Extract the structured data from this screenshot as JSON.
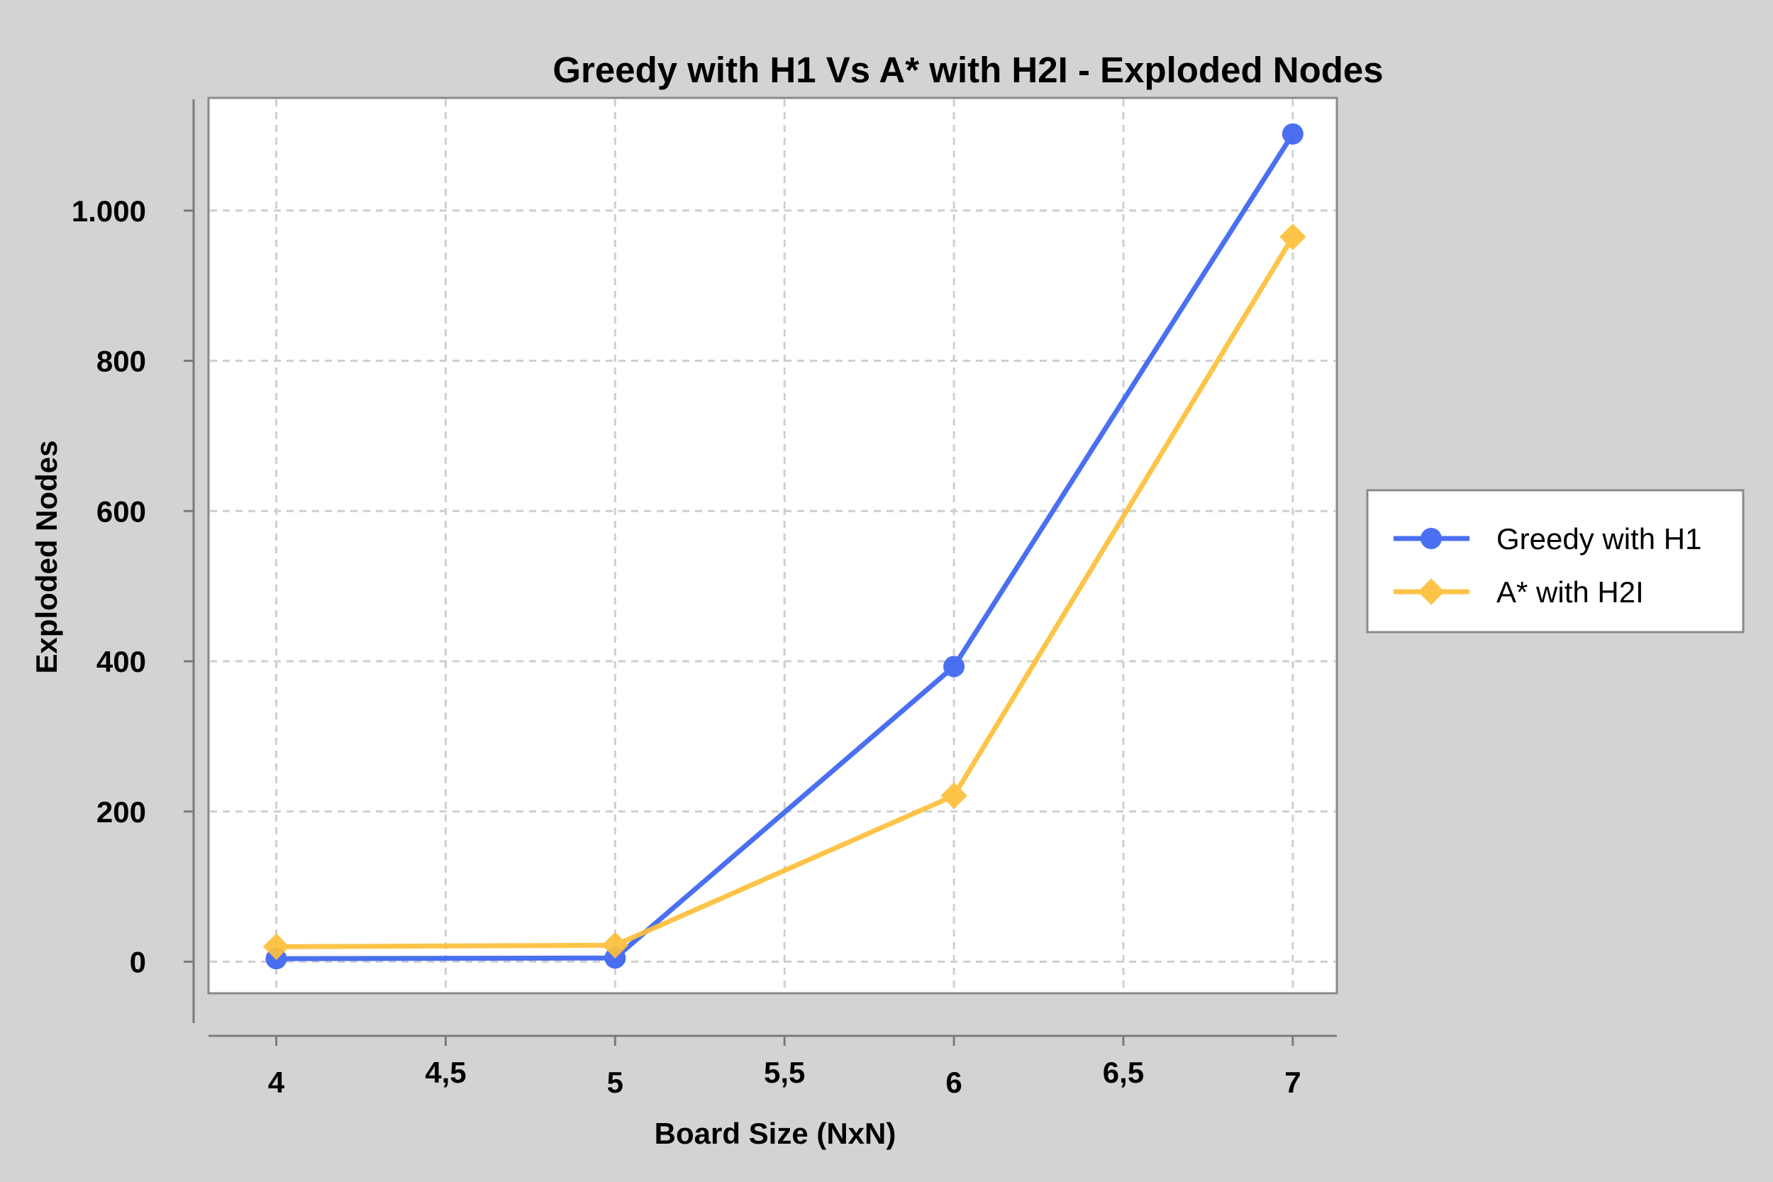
{
  "chart_data": {
    "type": "line",
    "title": "Greedy with H1 Vs A* with H2I - Exploded Nodes",
    "xlabel": "Board Size (NxN)",
    "ylabel": "Exploded Nodes",
    "x": [
      4,
      5,
      6,
      7
    ],
    "xlim": [
      3.8,
      7.13
    ],
    "ylim": [
      -42,
      1150
    ],
    "x_ticks": [
      4,
      4.5,
      5,
      5.5,
      6,
      6.5,
      7
    ],
    "x_tick_labels": [
      "4",
      "4,5",
      "5",
      "5,5",
      "6",
      "6,5",
      "7"
    ],
    "y_ticks": [
      0,
      200,
      400,
      600,
      800,
      1000
    ],
    "y_tick_labels": [
      "0",
      "200",
      "400",
      "600",
      "800",
      "1.000"
    ],
    "grid": true,
    "legend_position": "right",
    "series": [
      {
        "name": "Greedy with H1",
        "values": [
          4,
          5,
          393,
          1102
        ],
        "color": "#3b63f0",
        "marker": "circle"
      },
      {
        "name": "A* with H2I",
        "values": [
          20,
          22,
          221,
          965
        ],
        "color": "#fdbf3a",
        "marker": "diamond"
      }
    ]
  }
}
